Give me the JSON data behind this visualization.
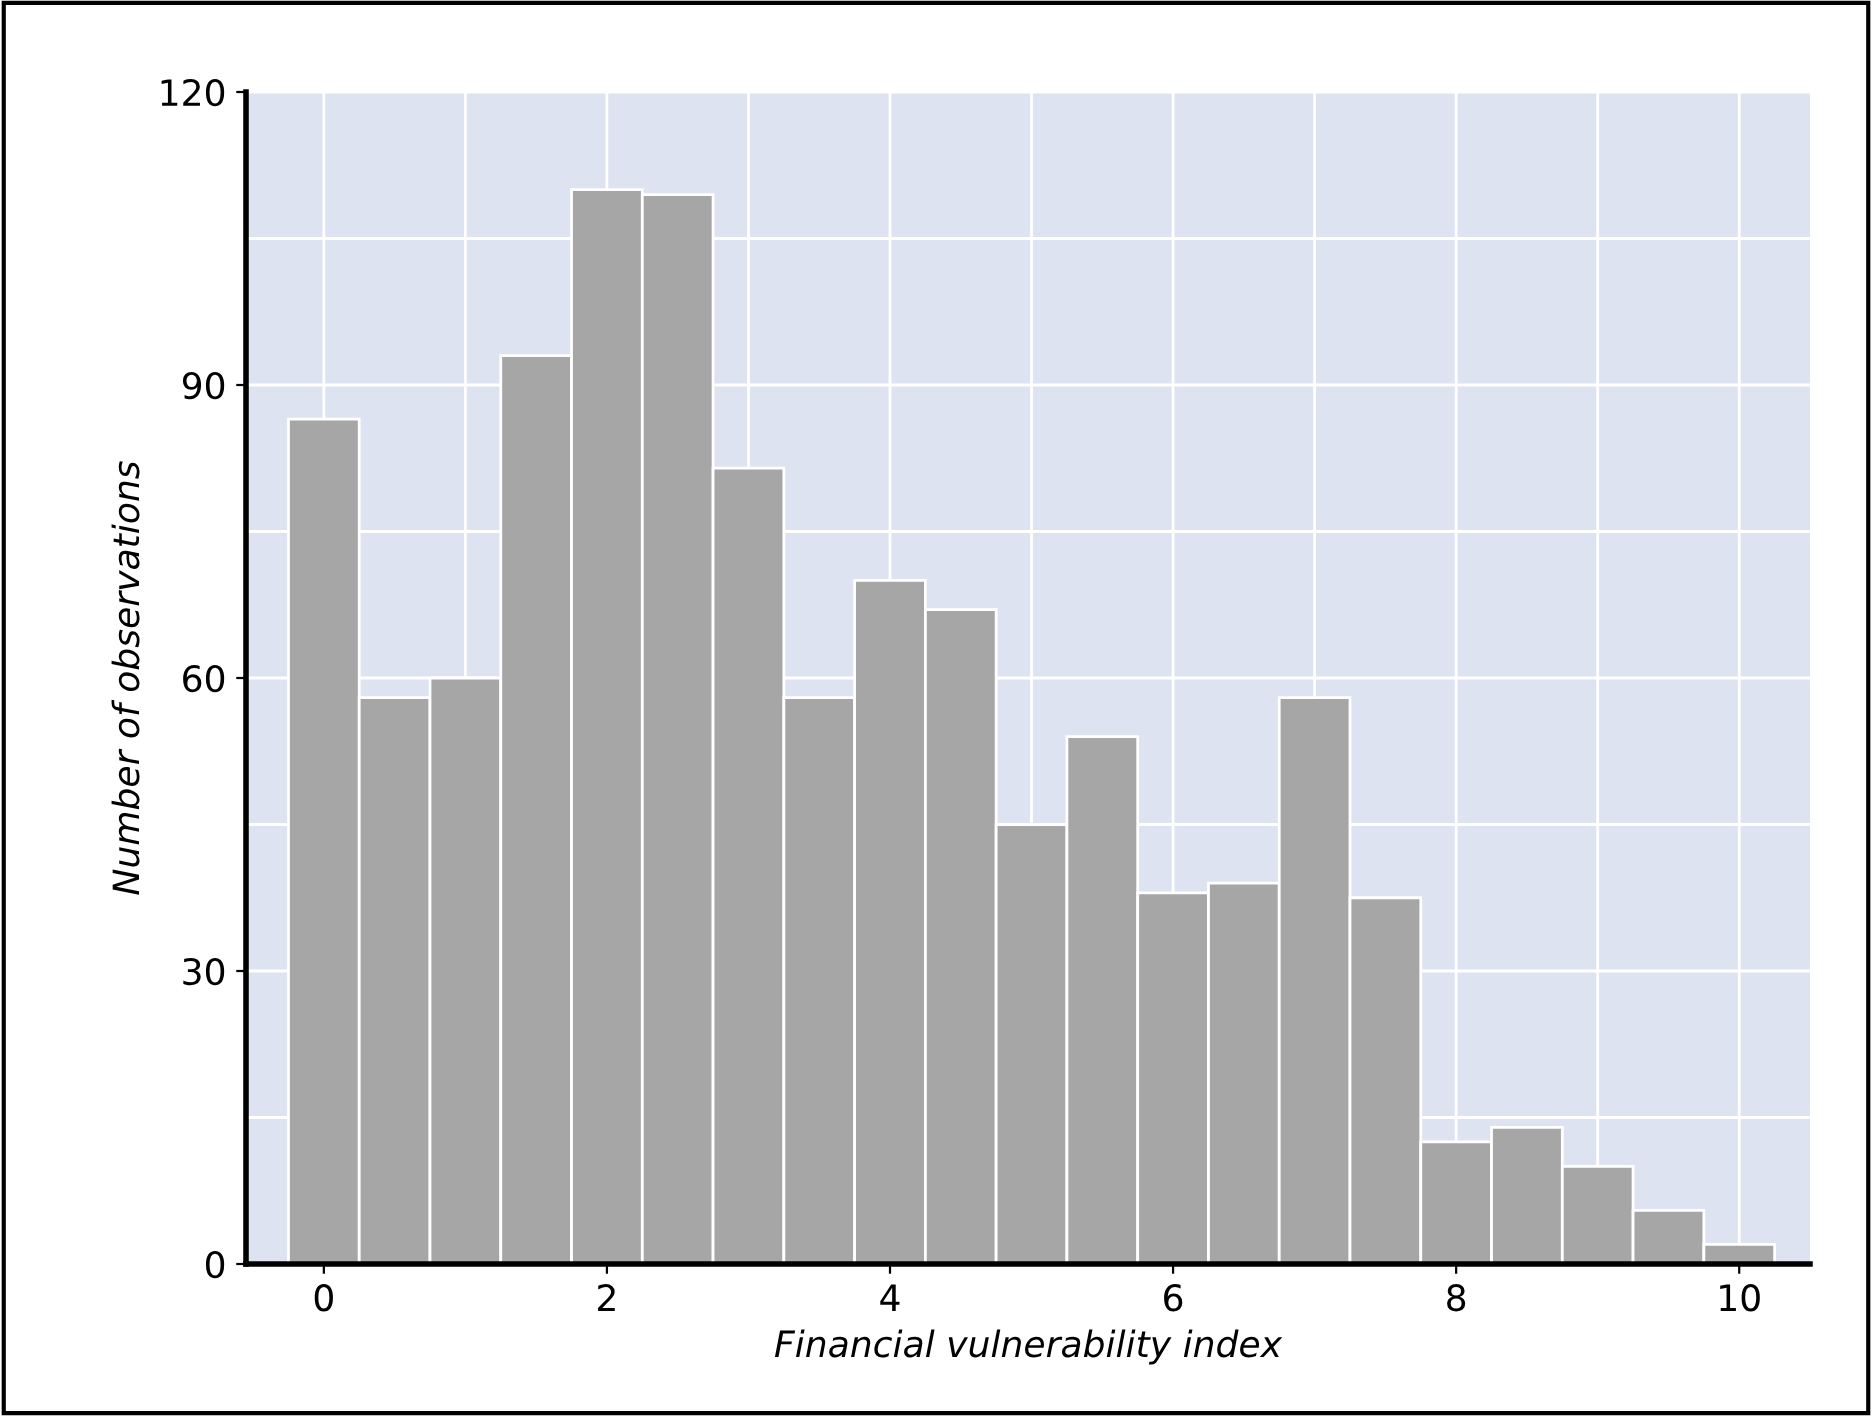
{
  "chart_data": {
    "type": "histogram",
    "xlabel": "Financial vulnerability index",
    "ylabel": "Number of observations",
    "bins": [
      -0.25,
      0.25,
      0.75,
      1.25,
      1.75,
      2.25,
      2.75,
      3.25,
      3.75,
      4.25,
      4.75,
      5.25,
      5.75,
      6.25,
      6.75,
      7.25,
      7.75,
      8.25,
      8.75,
      9.25,
      9.75,
      10.25
    ],
    "values": [
      86.5,
      58,
      60,
      93,
      110,
      109.5,
      81.5,
      58,
      70,
      67,
      45,
      54,
      38,
      39,
      58,
      37.5,
      12.5,
      14,
      10,
      5.5,
      2
    ],
    "color": "#a6a6a6",
    "xlim": [
      -0.55,
      10.5
    ],
    "ylim": [
      0,
      120
    ],
    "xticks": [
      0,
      {
        "value": 1,
        "label": null
      },
      2,
      {
        "value": 3,
        "label": null
      },
      4,
      {
        "value": 5,
        "label": null
      },
      6,
      {
        "value": 7,
        "label": null
      },
      8,
      {
        "value": 9,
        "label": null
      },
      10
    ],
    "yticks": [
      0,
      {
        "value": 15,
        "label": null
      },
      30,
      {
        "value": 45,
        "label": null
      },
      60,
      {
        "value": 75,
        "label": null
      },
      90,
      {
        "value": 105,
        "label": null
      },
      120
    ],
    "grid": true,
    "legend": false
  }
}
